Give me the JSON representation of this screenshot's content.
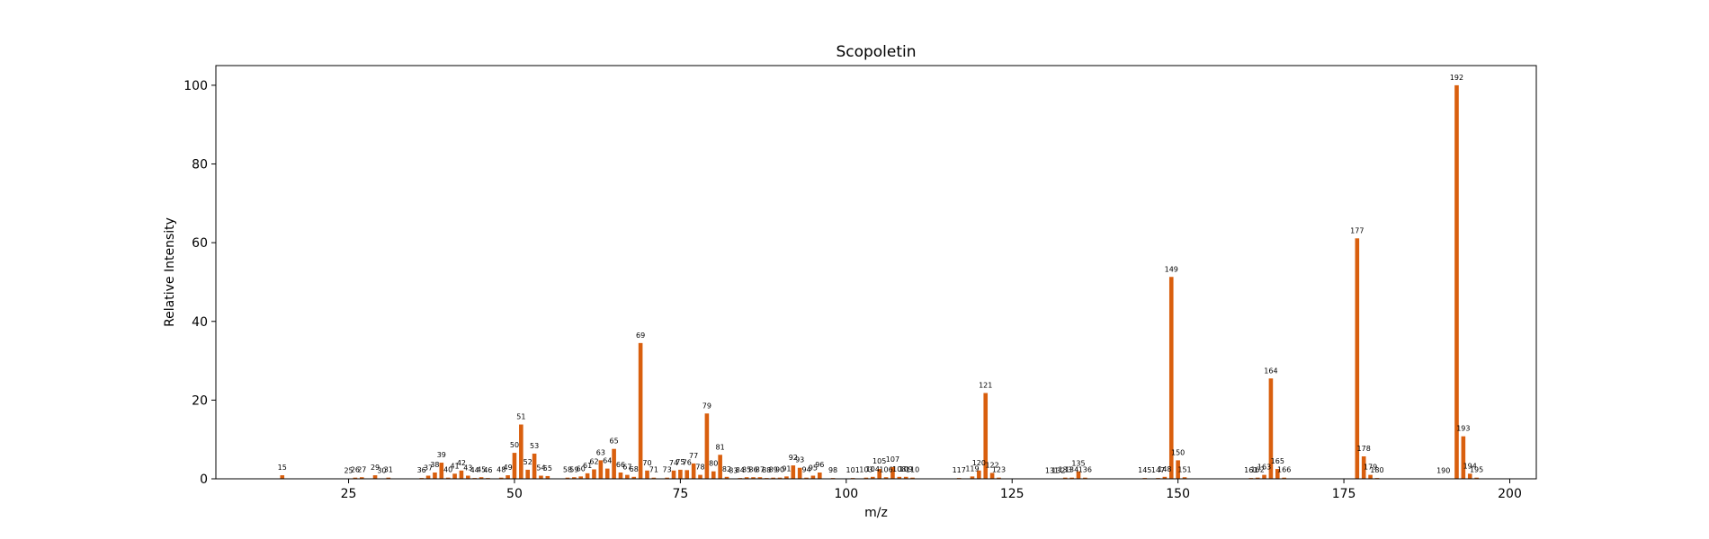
{
  "chart_data": {
    "type": "bar",
    "title": "Scopoletin",
    "xlabel": "m/z",
    "ylabel": "Relative Intensity",
    "xlim": [
      5,
      204
    ],
    "ylim": [
      0,
      105
    ],
    "xticks": [
      25,
      50,
      75,
      100,
      125,
      150,
      175,
      200
    ],
    "yticks": [
      0,
      20,
      40,
      60,
      80,
      100
    ],
    "grid": false,
    "colors": {
      "bar": "#d95f0e",
      "axis": "#000000",
      "background": "#ffffff"
    },
    "peaks": [
      {
        "mz": 15,
        "intensity": 0.9
      },
      {
        "mz": 25,
        "intensity": 0.1
      },
      {
        "mz": 26,
        "intensity": 0.3
      },
      {
        "mz": 27,
        "intensity": 0.4
      },
      {
        "mz": 29,
        "intensity": 0.9
      },
      {
        "mz": 30,
        "intensity": 0.1
      },
      {
        "mz": 31,
        "intensity": 0.3
      },
      {
        "mz": 36,
        "intensity": 0.2
      },
      {
        "mz": 37,
        "intensity": 0.8
      },
      {
        "mz": 38,
        "intensity": 1.6
      },
      {
        "mz": 39,
        "intensity": 4.1
      },
      {
        "mz": 40,
        "intensity": 0.3
      },
      {
        "mz": 41,
        "intensity": 1.3
      },
      {
        "mz": 42,
        "intensity": 2.1
      },
      {
        "mz": 43,
        "intensity": 0.8
      },
      {
        "mz": 44,
        "intensity": 0.2
      },
      {
        "mz": 45,
        "intensity": 0.4
      },
      {
        "mz": 46,
        "intensity": 0.2
      },
      {
        "mz": 48,
        "intensity": 0.3
      },
      {
        "mz": 49,
        "intensity": 0.9
      },
      {
        "mz": 50,
        "intensity": 6.6
      },
      {
        "mz": 51,
        "intensity": 13.8
      },
      {
        "mz": 52,
        "intensity": 2.3
      },
      {
        "mz": 53,
        "intensity": 6.4
      },
      {
        "mz": 54,
        "intensity": 0.8
      },
      {
        "mz": 55,
        "intensity": 0.7
      },
      {
        "mz": 58,
        "intensity": 0.3
      },
      {
        "mz": 59,
        "intensity": 0.4
      },
      {
        "mz": 60,
        "intensity": 0.6
      },
      {
        "mz": 61,
        "intensity": 1.4
      },
      {
        "mz": 62,
        "intensity": 2.4
      },
      {
        "mz": 63,
        "intensity": 4.7
      },
      {
        "mz": 64,
        "intensity": 2.6
      },
      {
        "mz": 65,
        "intensity": 7.6
      },
      {
        "mz": 66,
        "intensity": 1.6
      },
      {
        "mz": 67,
        "intensity": 1.0
      },
      {
        "mz": 68,
        "intensity": 0.5
      },
      {
        "mz": 69,
        "intensity": 34.5
      },
      {
        "mz": 70,
        "intensity": 2.1
      },
      {
        "mz": 71,
        "intensity": 0.3
      },
      {
        "mz": 73,
        "intensity": 0.3
      },
      {
        "mz": 74,
        "intensity": 2.1
      },
      {
        "mz": 75,
        "intensity": 2.3
      },
      {
        "mz": 76,
        "intensity": 2.2
      },
      {
        "mz": 77,
        "intensity": 3.9
      },
      {
        "mz": 78,
        "intensity": 1.0
      },
      {
        "mz": 79,
        "intensity": 16.6
      },
      {
        "mz": 80,
        "intensity": 1.9
      },
      {
        "mz": 81,
        "intensity": 6.1
      },
      {
        "mz": 82,
        "intensity": 0.5
      },
      {
        "mz": 83,
        "intensity": 0.1
      },
      {
        "mz": 84,
        "intensity": 0.2
      },
      {
        "mz": 85,
        "intensity": 0.4
      },
      {
        "mz": 86,
        "intensity": 0.4
      },
      {
        "mz": 87,
        "intensity": 0.4
      },
      {
        "mz": 88,
        "intensity": 0.2
      },
      {
        "mz": 89,
        "intensity": 0.3
      },
      {
        "mz": 90,
        "intensity": 0.3
      },
      {
        "mz": 91,
        "intensity": 0.6
      },
      {
        "mz": 92,
        "intensity": 3.4
      },
      {
        "mz": 93,
        "intensity": 2.8
      },
      {
        "mz": 94,
        "intensity": 0.3
      },
      {
        "mz": 95,
        "intensity": 0.8
      },
      {
        "mz": 96,
        "intensity": 1.6
      },
      {
        "mz": 98,
        "intensity": 0.2
      },
      {
        "mz": 101,
        "intensity": 0.2
      },
      {
        "mz": 103,
        "intensity": 0.3
      },
      {
        "mz": 104,
        "intensity": 0.5
      },
      {
        "mz": 105,
        "intensity": 2.5
      },
      {
        "mz": 106,
        "intensity": 0.4
      },
      {
        "mz": 107,
        "intensity": 3.0
      },
      {
        "mz": 108,
        "intensity": 0.5
      },
      {
        "mz": 109,
        "intensity": 0.5
      },
      {
        "mz": 110,
        "intensity": 0.3
      },
      {
        "mz": 117,
        "intensity": 0.2
      },
      {
        "mz": 119,
        "intensity": 0.6
      },
      {
        "mz": 120,
        "intensity": 2.1
      },
      {
        "mz": 121,
        "intensity": 21.8
      },
      {
        "mz": 122,
        "intensity": 1.5
      },
      {
        "mz": 123,
        "intensity": 0.3
      },
      {
        "mz": 131,
        "intensity": 0.1
      },
      {
        "mz": 132,
        "intensity": 0.1
      },
      {
        "mz": 133,
        "intensity": 0.3
      },
      {
        "mz": 134,
        "intensity": 0.3
      },
      {
        "mz": 135,
        "intensity": 1.9
      },
      {
        "mz": 136,
        "intensity": 0.3
      },
      {
        "mz": 145,
        "intensity": 0.2
      },
      {
        "mz": 147,
        "intensity": 0.2
      },
      {
        "mz": 148,
        "intensity": 0.5
      },
      {
        "mz": 149,
        "intensity": 51.3
      },
      {
        "mz": 150,
        "intensity": 4.7
      },
      {
        "mz": 151,
        "intensity": 0.4
      },
      {
        "mz": 161,
        "intensity": 0.2
      },
      {
        "mz": 162,
        "intensity": 0.3
      },
      {
        "mz": 163,
        "intensity": 1.0
      },
      {
        "mz": 164,
        "intensity": 25.5
      },
      {
        "mz": 165,
        "intensity": 2.5
      },
      {
        "mz": 166,
        "intensity": 0.3
      },
      {
        "mz": 177,
        "intensity": 61.1
      },
      {
        "mz": 178,
        "intensity": 5.7
      },
      {
        "mz": 179,
        "intensity": 1.0
      },
      {
        "mz": 180,
        "intensity": 0.2
      },
      {
        "mz": 190,
        "intensity": 0.1
      },
      {
        "mz": 192,
        "intensity": 100.0
      },
      {
        "mz": 193,
        "intensity": 10.8
      },
      {
        "mz": 194,
        "intensity": 1.3
      },
      {
        "mz": 195,
        "intensity": 0.3
      }
    ]
  }
}
